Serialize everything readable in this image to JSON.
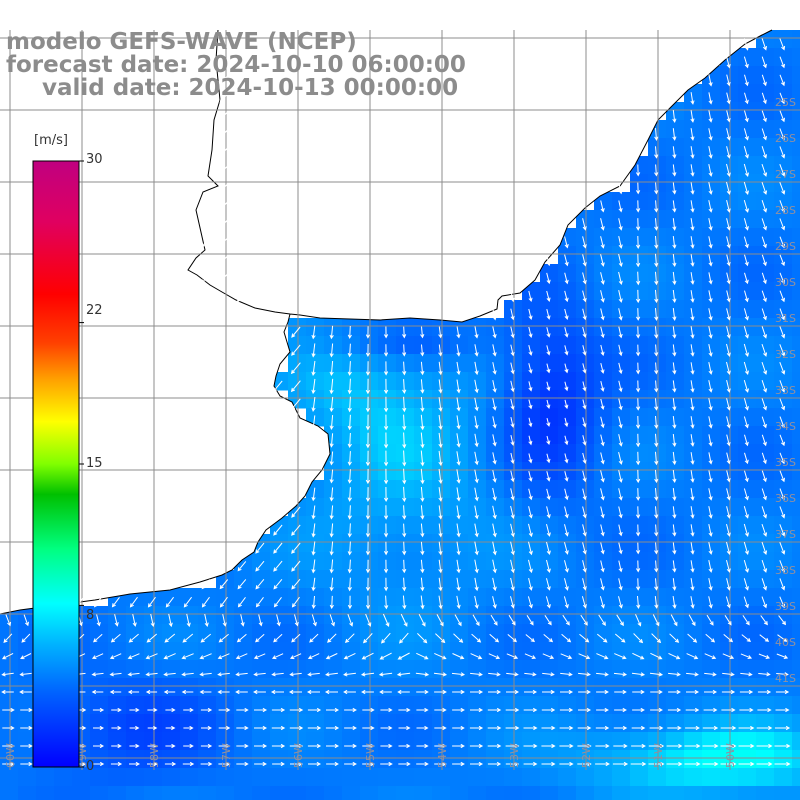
{
  "title": {
    "model": "modelo GEFS-WAVE (NCEP)",
    "forecast": "forecast date: 2024-10-10 06:00:00",
    "valid": "valid date: 2024-10-13 00:00:00"
  },
  "colorbar": {
    "unit": "[m/s]",
    "ticks": [
      "30",
      "22",
      "15",
      "8",
      "0"
    ],
    "tick_values": [
      30,
      22,
      15,
      8,
      0
    ],
    "range": [
      0,
      30
    ],
    "colors": [
      "#0000ff",
      "#0060ff",
      "#00b0ff",
      "#00ffff",
      "#00ff80",
      "#00c000",
      "#80ff00",
      "#ffff00",
      "#ffa000",
      "#ff4000",
      "#ff0000",
      "#e00060",
      "#c00080"
    ]
  },
  "map": {
    "variable": "wind speed and direction",
    "grid": true,
    "lat_labels": [
      "25S",
      "26S",
      "27S",
      "28S",
      "29S",
      "30S",
      "31S",
      "32S",
      "33S",
      "34S",
      "35S",
      "36S",
      "37S",
      "38S",
      "39S",
      "40S",
      "41S"
    ],
    "lon_labels": [
      "60W",
      "59W",
      "58W",
      "57W",
      "56W",
      "55W",
      "54W",
      "53W",
      "52W",
      "51W",
      "50W"
    ],
    "colors": {
      "land": "#ffffff",
      "coast": "#000000",
      "grid": "#8c8c8c",
      "vectors": "#ffffff"
    }
  }
}
